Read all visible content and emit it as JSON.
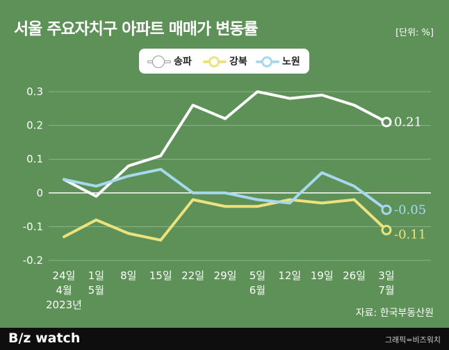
{
  "title": "서울 주요자치구 아파트 매매가 변동률",
  "unit": "[단위: %]",
  "source": "자료: 한국부동산원",
  "footer": {
    "logo_b": "B",
    "logo_rest": "/z watch",
    "credit": "그래픽=비즈워치"
  },
  "colors": {
    "background": "#5d9158",
    "songpa": "#ffffff",
    "gangbuk": "#ede37e",
    "nowon": "#a7d8ee"
  },
  "chart_data": {
    "type": "line",
    "title": "서울 주요자치구 아파트 매매가 변동률",
    "unit": "%",
    "ylim": [
      -0.2,
      0.3
    ],
    "y_ticks": [
      "0.3",
      "0.2",
      "0.1",
      "0",
      "-0.1",
      "-0.2"
    ],
    "categories": [
      "24일",
      "1일",
      "8일",
      "15일",
      "22일",
      "29일",
      "5일",
      "12일",
      "19일",
      "26일",
      "3일"
    ],
    "x_sublabels": [
      "4월",
      "5월",
      "",
      "",
      "",
      "",
      "6월",
      "",
      "",
      "",
      "7월"
    ],
    "year_label": "2023년",
    "grid": true,
    "legend_position": "top",
    "series": [
      {
        "name": "송파",
        "color": "#ffffff",
        "values": [
          0.04,
          -0.01,
          0.08,
          0.11,
          0.26,
          0.22,
          0.3,
          0.28,
          0.29,
          0.26,
          0.21
        ],
        "end_label": "0.21"
      },
      {
        "name": "강북",
        "color": "#ede37e",
        "values": [
          -0.13,
          -0.08,
          -0.12,
          -0.14,
          -0.02,
          -0.04,
          -0.04,
          -0.02,
          -0.03,
          -0.02,
          -0.11
        ],
        "end_label": "-0.11"
      },
      {
        "name": "노원",
        "color": "#a7d8ee",
        "values": [
          0.04,
          0.02,
          0.05,
          0.07,
          0.0,
          0.0,
          -0.02,
          -0.03,
          0.06,
          0.02,
          -0.05
        ],
        "end_label": "-0.05"
      }
    ]
  }
}
